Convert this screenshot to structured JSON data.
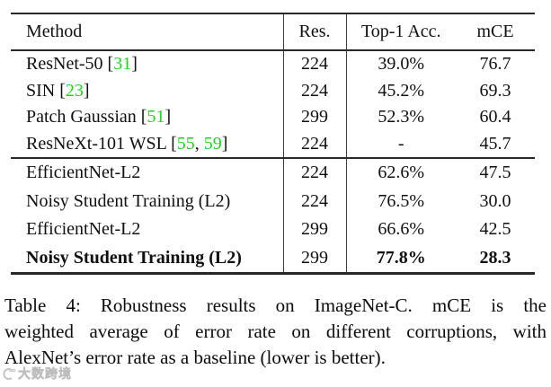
{
  "page": {
    "background": "#ffffff"
  },
  "colors": {
    "citation_green": "#17dd17",
    "rule": "#282828",
    "text": "#101010",
    "watermark_gray": "#c6c6c6"
  },
  "table": {
    "headers": [
      "Method",
      "Res.",
      "Top-1 Acc.",
      "mCE"
    ],
    "groups": [
      {
        "rows": [
          {
            "method": "ResNet-50 [31]",
            "res": "224",
            "top1": "39.0%",
            "mce": "76.7",
            "bold": false
          },
          {
            "method": "SIN [23]",
            "res": "224",
            "top1": "45.2%",
            "mce": "69.3",
            "bold": false
          },
          {
            "method": "Patch Gaussian [51]",
            "res": "299",
            "top1": "52.3%",
            "mce": "60.4",
            "bold": false
          },
          {
            "method": "ResNeXt-101 WSL [55, 59]",
            "res": "224",
            "top1": "-",
            "mce": "45.7",
            "bold": false
          }
        ]
      },
      {
        "rows": [
          {
            "method": "EfficientNet-L2",
            "res": "224",
            "top1": "62.6%",
            "mce": "47.5",
            "bold": false
          },
          {
            "method": "Noisy Student Training (L2)",
            "res": "224",
            "top1": "76.5%",
            "mce": "30.0",
            "bold": false
          },
          {
            "method": "EfficientNet-L2",
            "res": "299",
            "top1": "66.6%",
            "mce": "42.5",
            "bold": false
          },
          {
            "method": "Noisy Student Training (L2)",
            "res": "299",
            "top1": "77.8%",
            "mce": "28.3",
            "bold": true
          }
        ]
      }
    ]
  },
  "caption": {
    "lines": [
      "Table 4:  Robustness results on ImageNet-C. mCE is the",
      "weighted average of error rate on different corruptions, with",
      "AlexNet’s error rate as a baseline (lower is better)."
    ]
  },
  "watermark": {
    "text": "大数跨境",
    "icon": "logo-badge"
  }
}
